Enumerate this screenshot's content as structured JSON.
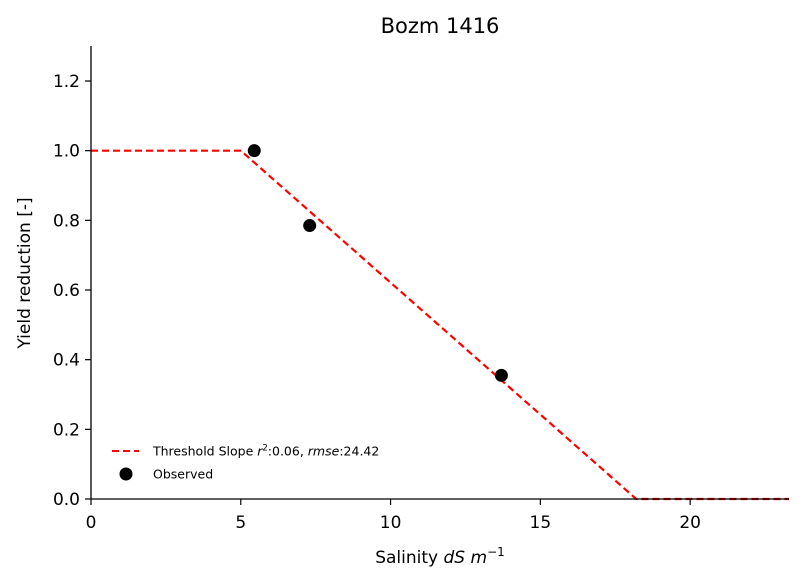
{
  "chart_data": {
    "type": "line",
    "title": "Bozm 1416",
    "xlabel": {
      "prefix": "Salinity ",
      "var": "dS m",
      "sup": "−1"
    },
    "ylabel": "Yield reduction [-]",
    "xlim": [
      0,
      23.3
    ],
    "ylim": [
      0,
      1.3
    ],
    "xticks": [
      0,
      5,
      10,
      15,
      20
    ],
    "yticks": [
      0.0,
      0.2,
      0.4,
      0.6,
      0.8,
      1.0,
      1.2
    ],
    "grid": false,
    "legend_position": "lower-left",
    "series": [
      {
        "name": "Threshold Slope",
        "legend_parts": {
          "prefix": "Threshold Slope ",
          "r_var": "r",
          "r_sup": "2",
          "r_value": ":0.06, ",
          "rmse_var": "rmse",
          "rmse_value": ":24.42"
        },
        "kind": "line",
        "style": "dashed",
        "color": "#ff0000",
        "x": [
          0,
          5.0,
          18.2,
          23.3
        ],
        "y": [
          1.0,
          1.0,
          0.0,
          0.0
        ]
      },
      {
        "name": "Observed",
        "kind": "scatter",
        "color": "#000000",
        "x": [
          5.45,
          7.3,
          13.7
        ],
        "y": [
          1.0,
          0.785,
          0.355
        ]
      }
    ]
  }
}
